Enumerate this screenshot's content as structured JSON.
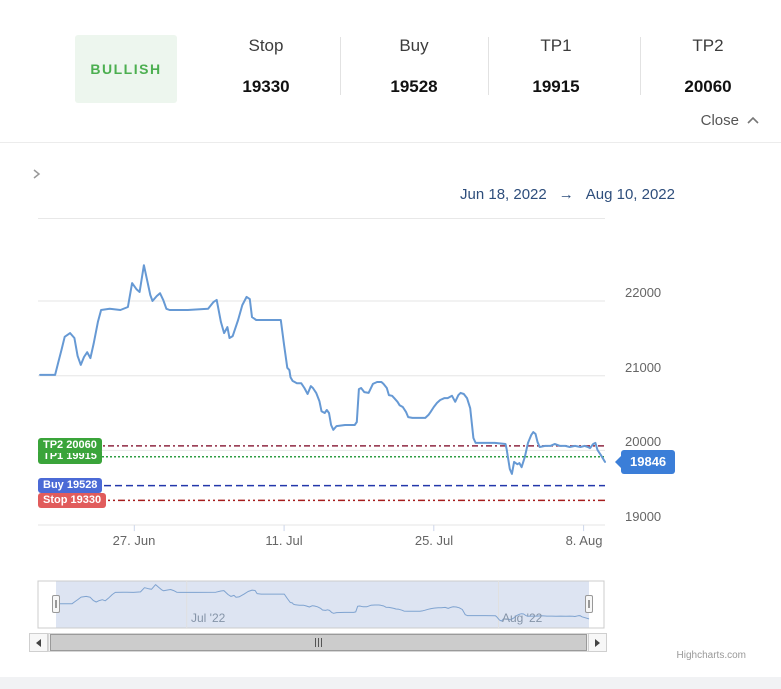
{
  "header": {
    "signal_label": "BULLISH",
    "stats": [
      {
        "label": "Stop",
        "value": "19330"
      },
      {
        "label": "Buy",
        "value": "19528"
      },
      {
        "label": "TP1",
        "value": "19915"
      },
      {
        "label": "TP2",
        "value": "20060"
      }
    ],
    "close_label": "Close"
  },
  "range_display": {
    "from": "Jun 18, 2022",
    "separator": "→",
    "to": "Aug 10, 2022"
  },
  "chart_data": {
    "type": "line",
    "title": "",
    "grid": "horizontal",
    "legend": "off",
    "x_axis": {
      "start_date": "Jun 18, 2022",
      "end_date": "Aug 10, 2022",
      "span_days": 53,
      "ticks": [
        {
          "label": "27. Jun",
          "day": 9
        },
        {
          "label": "11. Jul",
          "day": 23
        },
        {
          "label": "25. Jul",
          "day": 37
        },
        {
          "label": "8. Aug",
          "day": 51
        }
      ]
    },
    "y_axis": {
      "min": 19000,
      "max": 22800,
      "gridlines": [
        22000,
        21000,
        20000,
        19000
      ],
      "labels": [
        "22000",
        "21000",
        "20000",
        "19000"
      ]
    },
    "plot_lines": [
      {
        "id": "tp1",
        "label": "TP1 19915",
        "value": 19915,
        "line_color": "#2f9e44",
        "dash": "dotted",
        "badge_color": "#3aa43a"
      },
      {
        "id": "tp2",
        "label": "TP2 20060",
        "value": 20060,
        "line_color": "#8e2742",
        "dash": "dash-dot",
        "badge_color": "#3aa43a"
      },
      {
        "id": "buy",
        "label": "Buy 19528",
        "value": 19528,
        "line_color": "#2337ab",
        "dash": "dashed",
        "badge_color": "#4b6ad6"
      },
      {
        "id": "stop",
        "label": "Stop 19330",
        "value": 19330,
        "line_color": "#a61d1d",
        "dash": "dash-dot-dot",
        "badge_color": "#e15c5c"
      }
    ],
    "last_price": {
      "label": "19846",
      "value": 19846,
      "color": "#3b7ed8"
    },
    "series": [
      {
        "name": "Price",
        "color": "#6699d4",
        "points": [
          [
            0.2,
            21010
          ],
          [
            1.6,
            21010
          ],
          [
            1.9,
            21180
          ],
          [
            2.2,
            21345
          ],
          [
            2.5,
            21520
          ],
          [
            3.0,
            21570
          ],
          [
            3.4,
            21505
          ],
          [
            3.7,
            21265
          ],
          [
            4.0,
            21145
          ],
          [
            4.3,
            21250
          ],
          [
            4.6,
            21315
          ],
          [
            4.9,
            21235
          ],
          [
            5.2,
            21425
          ],
          [
            5.6,
            21720
          ],
          [
            5.9,
            21880
          ],
          [
            6.7,
            21895
          ],
          [
            7.7,
            21880
          ],
          [
            8.4,
            21920
          ],
          [
            8.8,
            22240
          ],
          [
            9.2,
            22160
          ],
          [
            9.5,
            22120
          ],
          [
            9.9,
            22480
          ],
          [
            10.2,
            22280
          ],
          [
            10.5,
            22080
          ],
          [
            10.7,
            22000
          ],
          [
            11.1,
            22065
          ],
          [
            11.4,
            22105
          ],
          [
            11.7,
            22015
          ],
          [
            12.0,
            21895
          ],
          [
            12.3,
            21880
          ],
          [
            14.0,
            21880
          ],
          [
            15.9,
            21895
          ],
          [
            16.4,
            21985
          ],
          [
            16.7,
            22015
          ],
          [
            17.1,
            21720
          ],
          [
            17.4,
            21570
          ],
          [
            17.7,
            21650
          ],
          [
            17.9,
            21505
          ],
          [
            18.2,
            21530
          ],
          [
            18.7,
            21745
          ],
          [
            19.1,
            21945
          ],
          [
            19.5,
            22055
          ],
          [
            19.8,
            22025
          ],
          [
            20.0,
            21785
          ],
          [
            20.4,
            21745
          ],
          [
            21.7,
            21745
          ],
          [
            22.7,
            21745
          ],
          [
            23.0,
            21410
          ],
          [
            23.3,
            21105
          ],
          [
            23.5,
            21075
          ],
          [
            23.6,
            20980
          ],
          [
            23.8,
            20930
          ],
          [
            24.2,
            20900
          ],
          [
            24.6,
            20900
          ],
          [
            24.9,
            20835
          ],
          [
            25.2,
            20755
          ],
          [
            25.5,
            20860
          ],
          [
            25.7,
            20835
          ],
          [
            26.0,
            20770
          ],
          [
            26.3,
            20660
          ],
          [
            26.5,
            20525
          ],
          [
            26.8,
            20500
          ],
          [
            27.0,
            20540
          ],
          [
            27.2,
            20500
          ],
          [
            27.4,
            20340
          ],
          [
            27.6,
            20275
          ],
          [
            27.9,
            20325
          ],
          [
            28.7,
            20340
          ],
          [
            29.6,
            20340
          ],
          [
            29.8,
            20380
          ],
          [
            30.0,
            20820
          ],
          [
            30.2,
            20835
          ],
          [
            30.5,
            20780
          ],
          [
            30.9,
            20770
          ],
          [
            31.3,
            20890
          ],
          [
            31.7,
            20915
          ],
          [
            32.1,
            20915
          ],
          [
            32.3,
            20890
          ],
          [
            32.6,
            20835
          ],
          [
            32.8,
            20740
          ],
          [
            33.1,
            20730
          ],
          [
            33.3,
            20700
          ],
          [
            33.6,
            20650
          ],
          [
            33.8,
            20605
          ],
          [
            34.1,
            20580
          ],
          [
            34.4,
            20515
          ],
          [
            34.6,
            20445
          ],
          [
            35.0,
            20435
          ],
          [
            36.2,
            20435
          ],
          [
            36.5,
            20475
          ],
          [
            36.7,
            20515
          ],
          [
            37.0,
            20580
          ],
          [
            37.3,
            20635
          ],
          [
            37.6,
            20675
          ],
          [
            38.0,
            20700
          ],
          [
            38.3,
            20700
          ],
          [
            38.7,
            20730
          ],
          [
            39.0,
            20650
          ],
          [
            39.3,
            20740
          ],
          [
            39.5,
            20770
          ],
          [
            39.8,
            20755
          ],
          [
            40.1,
            20700
          ],
          [
            40.4,
            20565
          ],
          [
            40.7,
            20165
          ],
          [
            40.9,
            20100
          ],
          [
            42.7,
            20100
          ],
          [
            43.7,
            20085
          ],
          [
            43.8,
            20020
          ],
          [
            44.1,
            19750
          ],
          [
            44.3,
            19685
          ],
          [
            44.5,
            19845
          ],
          [
            44.8,
            19815
          ],
          [
            45.0,
            19830
          ],
          [
            45.2,
            19775
          ],
          [
            45.5,
            19910
          ],
          [
            45.8,
            20100
          ],
          [
            46.1,
            20205
          ],
          [
            46.3,
            20245
          ],
          [
            46.5,
            20220
          ],
          [
            46.7,
            20110
          ],
          [
            46.9,
            20045
          ],
          [
            47.4,
            20060
          ],
          [
            47.9,
            20060
          ],
          [
            48.3,
            20085
          ],
          [
            48.8,
            20060
          ],
          [
            49.3,
            20060
          ],
          [
            49.7,
            20045
          ],
          [
            50.2,
            20060
          ],
          [
            50.7,
            20045
          ],
          [
            51.1,
            20060
          ],
          [
            51.4,
            20045
          ],
          [
            51.6,
            20030
          ],
          [
            51.9,
            20085
          ],
          [
            52.1,
            20100
          ],
          [
            52.3,
            20005
          ],
          [
            52.6,
            19940
          ],
          [
            53.0,
            19846
          ]
        ]
      }
    ],
    "navigator": {
      "labels": [
        {
          "text": "Jul '22",
          "day": 13
        },
        {
          "text": "Aug '22",
          "day": 44
        }
      ]
    }
  },
  "credit": "Highcharts.com"
}
